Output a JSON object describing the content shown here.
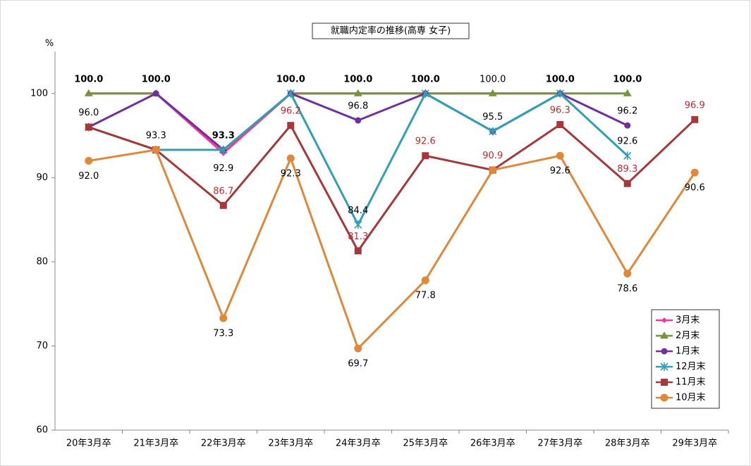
{
  "chart_data": {
    "type": "line",
    "title": "就職内定率の推移(高専 女子)",
    "y_label": "%",
    "categories": [
      "20年3月卒",
      "21年3月卒",
      "22年3月卒",
      "23年3月卒",
      "24年3月卒",
      "25年3月卒",
      "26年3月卒",
      "27年3月卒",
      "28年3月卒",
      "29年3月卒"
    ],
    "ylim": [
      60,
      105
    ],
    "yticks": [
      60,
      70,
      80,
      90,
      100
    ],
    "grid": false,
    "legend": "lower right",
    "series": [
      {
        "name": "3月末",
        "color": "#ff3399",
        "marker": "diamond",
        "label_color": "#000000",
        "label_bold": false,
        "values": [
          100,
          100,
          92.9,
          100,
          100,
          100,
          100,
          100,
          null,
          null
        ],
        "value_labels": [
          null,
          null,
          "92.9",
          null,
          null,
          null,
          "100.0",
          null,
          null,
          null
        ]
      },
      {
        "name": "2月末",
        "color": "#77933c",
        "marker": "triangle",
        "label_color": "#000000",
        "label_bold": true,
        "values": [
          100,
          100,
          93.3,
          100,
          100,
          100,
          100,
          100,
          100,
          null
        ],
        "value_labels": [
          "100.0",
          "100.0",
          "93.3",
          "100.0",
          "100.0",
          "100.0",
          null,
          "100.0",
          "100.0",
          null
        ]
      },
      {
        "name": "1月末",
        "color": "#7030a0",
        "marker": "circle",
        "label_color": "#000000",
        "label_bold": false,
        "values": [
          96.0,
          100,
          93.3,
          100,
          96.8,
          100,
          95.5,
          100,
          96.2,
          null
        ],
        "value_labels": [
          "96.0",
          null,
          null,
          null,
          "96.8",
          null,
          "95.5",
          null,
          "96.2",
          null
        ]
      },
      {
        "name": "12月末",
        "color": "#31a0b5",
        "marker": "x",
        "label_color": "#000000",
        "label_bold": false,
        "values": [
          96.0,
          93.3,
          93.3,
          100,
          84.4,
          100,
          95.5,
          100,
          92.6,
          null
        ],
        "value_labels": [
          null,
          "93.3",
          null,
          null,
          "84.4",
          null,
          null,
          null,
          "92.6",
          null
        ]
      },
      {
        "name": "11月末",
        "color": "#a5383b",
        "marker": "square",
        "label_color": "#c0282d",
        "label_bold": false,
        "values": [
          96.0,
          93.3,
          86.7,
          96.2,
          81.3,
          92.6,
          90.9,
          96.3,
          89.3,
          96.9
        ],
        "value_labels": [
          null,
          null,
          "86.7",
          "96.2",
          "81.3",
          "92.6",
          "90.9",
          "96.3",
          "89.3",
          "96.9"
        ]
      },
      {
        "name": "10月末",
        "color": "#e0883a",
        "marker": "bigcircle",
        "label_color": "#000000",
        "label_bold": false,
        "values": [
          92.0,
          93.3,
          73.3,
          92.3,
          69.7,
          77.8,
          90.9,
          92.6,
          78.6,
          90.6
        ],
        "value_labels": [
          "92.0",
          null,
          "73.3",
          "92.3",
          "69.7",
          "77.8",
          null,
          "92.6",
          "78.6",
          "90.6"
        ]
      }
    ]
  }
}
